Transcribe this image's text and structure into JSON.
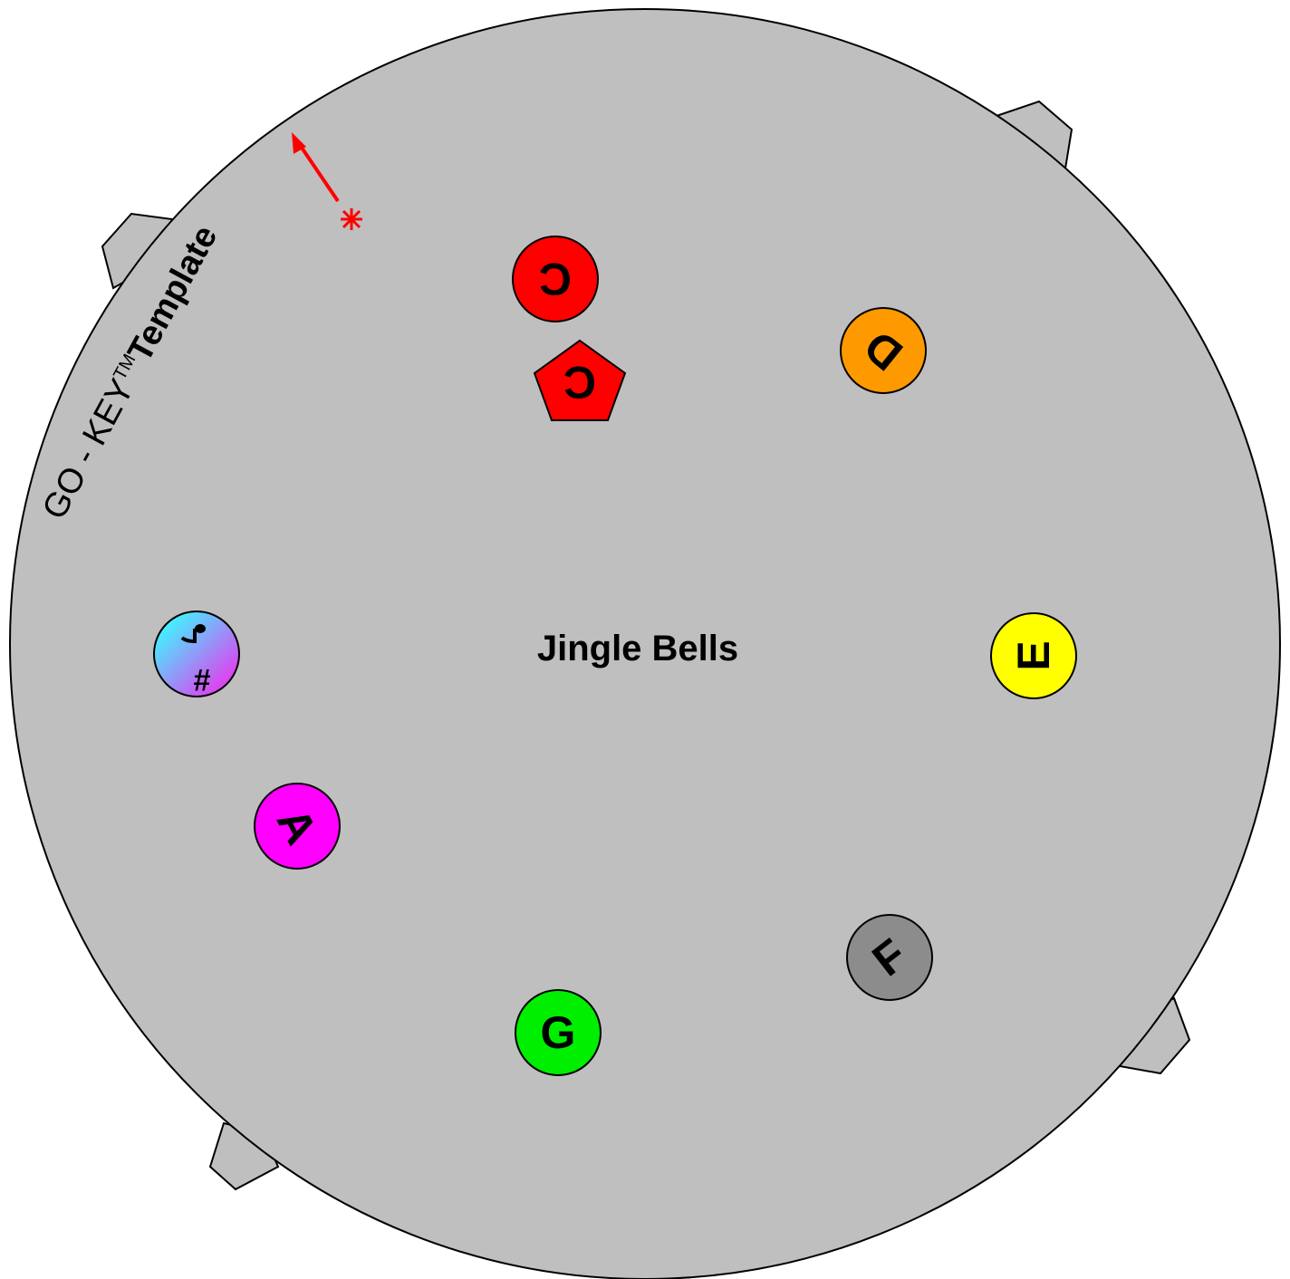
{
  "template": {
    "brand": "GO - KEY",
    "trademark": "TM",
    "word": "Template"
  },
  "song_title": "Jingle Bells",
  "keys": [
    {
      "label": "C"
    },
    {
      "label": "C"
    },
    {
      "label": "D"
    },
    {
      "label": "E"
    },
    {
      "label": "F"
    },
    {
      "label": "G"
    },
    {
      "label": "A"
    }
  ],
  "sharp_key": {
    "label": "#"
  }
}
